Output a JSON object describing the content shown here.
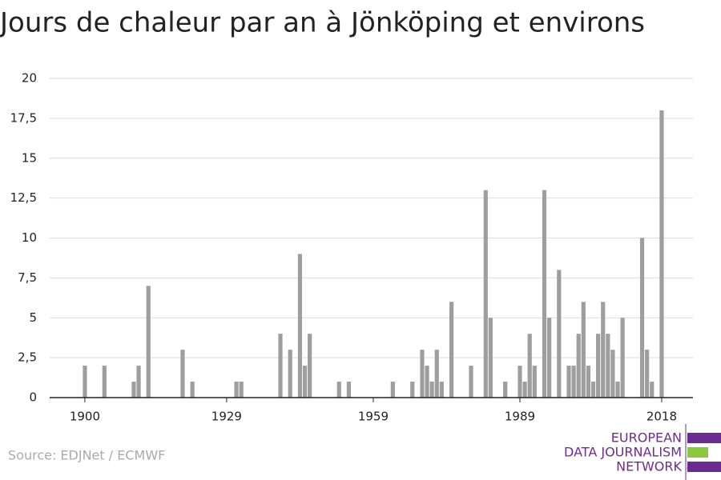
{
  "chart_data": {
    "type": "bar",
    "title": "Jours de chaleur par an à Jönköping et environs",
    "source": "Source: EDJNet / ECMWF",
    "logo": [
      "EUROPEAN",
      "DATA JOURNALISM",
      "NETWORK"
    ],
    "color": "#9e9e9e",
    "x": [
      1900,
      1904,
      1910,
      1911,
      1913,
      1920,
      1922,
      1931,
      1932,
      1940,
      1942,
      1944,
      1945,
      1946,
      1952,
      1954,
      1963,
      1967,
      1969,
      1970,
      1971,
      1972,
      1973,
      1975,
      1979,
      1982,
      1983,
      1986,
      1989,
      1990,
      1991,
      1992,
      1994,
      1995,
      1997,
      1999,
      2000,
      2001,
      2002,
      2003,
      2004,
      2005,
      2006,
      2007,
      2008,
      2009,
      2010,
      2014,
      2015,
      2016,
      2018
    ],
    "values": [
      2,
      2,
      1,
      2,
      7,
      3,
      1,
      1,
      1,
      4,
      3,
      9,
      2,
      4,
      1,
      1,
      1,
      1,
      3,
      2,
      1,
      3,
      1,
      6,
      2,
      13,
      5,
      1,
      2,
      1,
      4,
      2,
      13,
      5,
      8,
      2,
      2,
      4,
      6,
      2,
      1,
      4,
      6,
      4,
      3,
      1,
      5,
      10,
      3,
      1,
      18
    ],
    "xlim": [
      1892.8,
      2024.4
    ],
    "xticks": [
      1900,
      1929,
      1959,
      1989,
      2018
    ],
    "ylim": [
      0,
      20
    ],
    "yticks": [
      0,
      {
        "value": 2.5,
        "label": "2,5"
      },
      5,
      {
        "value": 7.5,
        "label": "7,5"
      },
      10,
      {
        "value": 12.5,
        "label": "12,5"
      },
      15,
      {
        "value": 17.5,
        "label": "17,5"
      },
      20
    ],
    "grid": true
  }
}
